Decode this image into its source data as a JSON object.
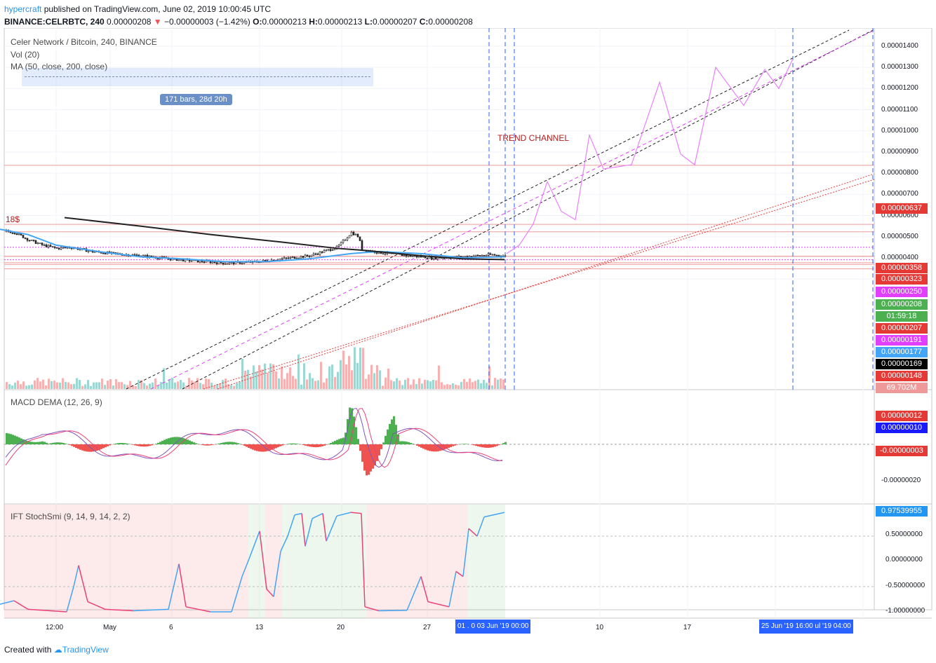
{
  "header": {
    "brand": "hypercraft",
    "published": " published on TradingView.com, June 02, 2019 10:00:45 UTC",
    "symbol": "BINANCE:CELRBTC, 240",
    "price": "0.00000208",
    "arrow": "▼",
    "change": "−0.00000003 (−1.42%)",
    "o_label": "O:",
    "o_value": "0.00000213",
    "h_label": "H:",
    "h_value": "0.00000213",
    "l_label": "L:",
    "l_value": "0.00000207",
    "c_label": "C:",
    "c_value": "0.00000208"
  },
  "legends": {
    "title": "Celer Network / Bitcoin, 240, BINANCE",
    "vol": "Vol (20)",
    "ma": "MA (50, close, 200, close)",
    "macd": "MACD DEMA (12, 26, 9)",
    "ift": "IFT StochSmi (9, 14, 9, 14, 2, 2)"
  },
  "annotations": {
    "bars_range": "171 bars, 28d 20h",
    "trend_channel": "TREND CHANNEL",
    "dollar": "18$"
  },
  "price_tags": [
    {
      "text": "0.00000637",
      "color": "#e53935"
    },
    {
      "text": "0.00000358",
      "color": "#e53935"
    },
    {
      "text": "0.00000323",
      "color": "#e53935"
    },
    {
      "text": "0.00000250",
      "color": "#e040fb"
    },
    {
      "text": "0.00000208",
      "color": "#4caf50"
    },
    {
      "text": "01:59:18",
      "color": "#4caf50"
    },
    {
      "text": "0.00000207",
      "color": "#e53935"
    },
    {
      "text": "0.00000191",
      "color": "#e040fb"
    },
    {
      "text": "0.00000177",
      "color": "#42a5f5"
    },
    {
      "text": "0.00000169",
      "color": "#000000"
    },
    {
      "text": "0.00000148",
      "color": "#e53935"
    },
    {
      "text": "69.702M",
      "color": "#ef9a9a"
    }
  ],
  "macd_tags": [
    {
      "text": "0.00000012",
      "color": "#e53935"
    },
    {
      "text": "0.00000010",
      "color": "#1a1aff"
    },
    {
      "text": "-0.00000003",
      "color": "#e53935"
    }
  ],
  "ift_tags": [
    {
      "text": "0.97539955",
      "color": "#2196f3"
    }
  ],
  "footer": {
    "created": "Created with ",
    "tv": "TradingView"
  },
  "x_badges": {
    "left": "01 . 0  03 Jun '19   00:00",
    "right": "25 Jun '19   16:00  ul '19   04:00"
  },
  "chart_data": [
    {
      "type": "candlestick",
      "title": "Celer Network / Bitcoin, 240, BINANCE",
      "y_ticks": [
        "0.00001400",
        "0.00001300",
        "0.00001200",
        "0.00001100",
        "0.00001000",
        "0.00000900",
        "0.00000800",
        "0.00000700",
        "0.00000600",
        "0.00000500",
        "0.00000400"
      ],
      "x_ticks": [
        "12:00",
        "May",
        "6",
        "13",
        "20",
        "27",
        "10",
        "17"
      ],
      "close_points": [
        [
          0,
          3.3
        ],
        [
          20,
          3.2
        ],
        [
          40,
          2.85
        ],
        [
          60,
          2.6
        ],
        [
          80,
          2.45
        ],
        [
          100,
          2.5
        ],
        [
          130,
          2.3
        ],
        [
          160,
          2.2
        ],
        [
          200,
          2.1
        ],
        [
          240,
          1.95
        ],
        [
          280,
          1.85
        ],
        [
          320,
          1.75
        ],
        [
          360,
          1.8
        ],
        [
          400,
          1.95
        ],
        [
          440,
          2.1
        ],
        [
          480,
          2.5
        ],
        [
          500,
          3.2
        ],
        [
          510,
          3.0
        ],
        [
          515,
          2.4
        ],
        [
          540,
          2.25
        ],
        [
          580,
          2.1
        ],
        [
          620,
          2.0
        ],
        [
          660,
          2.05
        ],
        [
          700,
          2.15
        ],
        [
          719,
          2.08
        ]
      ],
      "ma50": [
        [
          0,
          3.35
        ],
        [
          40,
          3.1
        ],
        [
          80,
          2.6
        ],
        [
          140,
          2.3
        ],
        [
          200,
          2.05
        ],
        [
          260,
          1.95
        ],
        [
          320,
          1.82
        ],
        [
          380,
          1.82
        ],
        [
          440,
          1.95
        ],
        [
          500,
          2.2
        ],
        [
          540,
          2.3
        ],
        [
          600,
          2.2
        ],
        [
          660,
          2.0
        ],
        [
          719,
          2.05
        ]
      ],
      "ma200": [
        [
          92,
          3.9
        ],
        [
          200,
          3.5
        ],
        [
          300,
          3.1
        ],
        [
          400,
          2.75
        ],
        [
          480,
          2.45
        ],
        [
          520,
          2.35
        ],
        [
          600,
          2.1
        ],
        [
          660,
          1.95
        ],
        [
          719,
          1.92
        ]
      ],
      "projection": [
        [
          722,
          2.2
        ],
        [
          740,
          2.6
        ],
        [
          760,
          3.6
        ],
        [
          780,
          5.6
        ],
        [
          800,
          4.2
        ],
        [
          820,
          3.8
        ],
        [
          840,
          7.8
        ],
        [
          860,
          6.2
        ],
        [
          900,
          6.4
        ],
        [
          940,
          10.3
        ],
        [
          970,
          6.9
        ],
        [
          990,
          6.4
        ],
        [
          1020,
          11.0
        ],
        [
          1060,
          9.2
        ],
        [
          1090,
          10.9
        ],
        [
          1110,
          10.0
        ],
        [
          1130,
          11.4
        ]
      ],
      "horizontal_levels": [
        6.37,
        3.58,
        3.23,
        2.5,
        2.08,
        2.07,
        1.91,
        1.77,
        1.69,
        1.48
      ],
      "volume_max": "69.702M"
    },
    {
      "type": "bar",
      "title": "MACD DEMA (12, 26, 9)",
      "y_ticks": [
        "-0.00000020"
      ]
    },
    {
      "type": "line",
      "title": "IFT StochSmi (9, 14, 9, 14, 2, 2)",
      "y_ticks": [
        "0.50000000",
        "0.00000000",
        "-0.50000000",
        "-1.00000000"
      ],
      "points": [
        [
          0,
          -0.85
        ],
        [
          20,
          -0.78
        ],
        [
          40,
          -0.95
        ],
        [
          95,
          -1.0
        ],
        [
          105,
          -0.5
        ],
        [
          112,
          -0.08
        ],
        [
          125,
          -0.8
        ],
        [
          150,
          -0.95
        ],
        [
          190,
          -0.98
        ],
        [
          240,
          -0.95
        ],
        [
          255,
          -0.05
        ],
        [
          265,
          -0.9
        ],
        [
          300,
          -1.0
        ],
        [
          330,
          -1.0
        ],
        [
          345,
          -0.3
        ],
        [
          355,
          0.05
        ],
        [
          370,
          0.6
        ],
        [
          380,
          -0.55
        ],
        [
          390,
          -0.7
        ],
        [
          400,
          0.2
        ],
        [
          410,
          0.5
        ],
        [
          420,
          0.92
        ],
        [
          430,
          0.95
        ],
        [
          435,
          0.3
        ],
        [
          445,
          0.85
        ],
        [
          460,
          0.95
        ],
        [
          465,
          0.4
        ],
        [
          480,
          0.9
        ],
        [
          500,
          0.97
        ],
        [
          515,
          0.95
        ],
        [
          520,
          -0.9
        ],
        [
          540,
          -0.98
        ],
        [
          580,
          -0.97
        ],
        [
          600,
          -0.3
        ],
        [
          610,
          -0.8
        ],
        [
          640,
          -0.9
        ],
        [
          650,
          -0.2
        ],
        [
          660,
          -0.3
        ],
        [
          668,
          0.65
        ],
        [
          680,
          0.5
        ],
        [
          690,
          0.88
        ],
        [
          719,
          0.97
        ]
      ]
    }
  ]
}
